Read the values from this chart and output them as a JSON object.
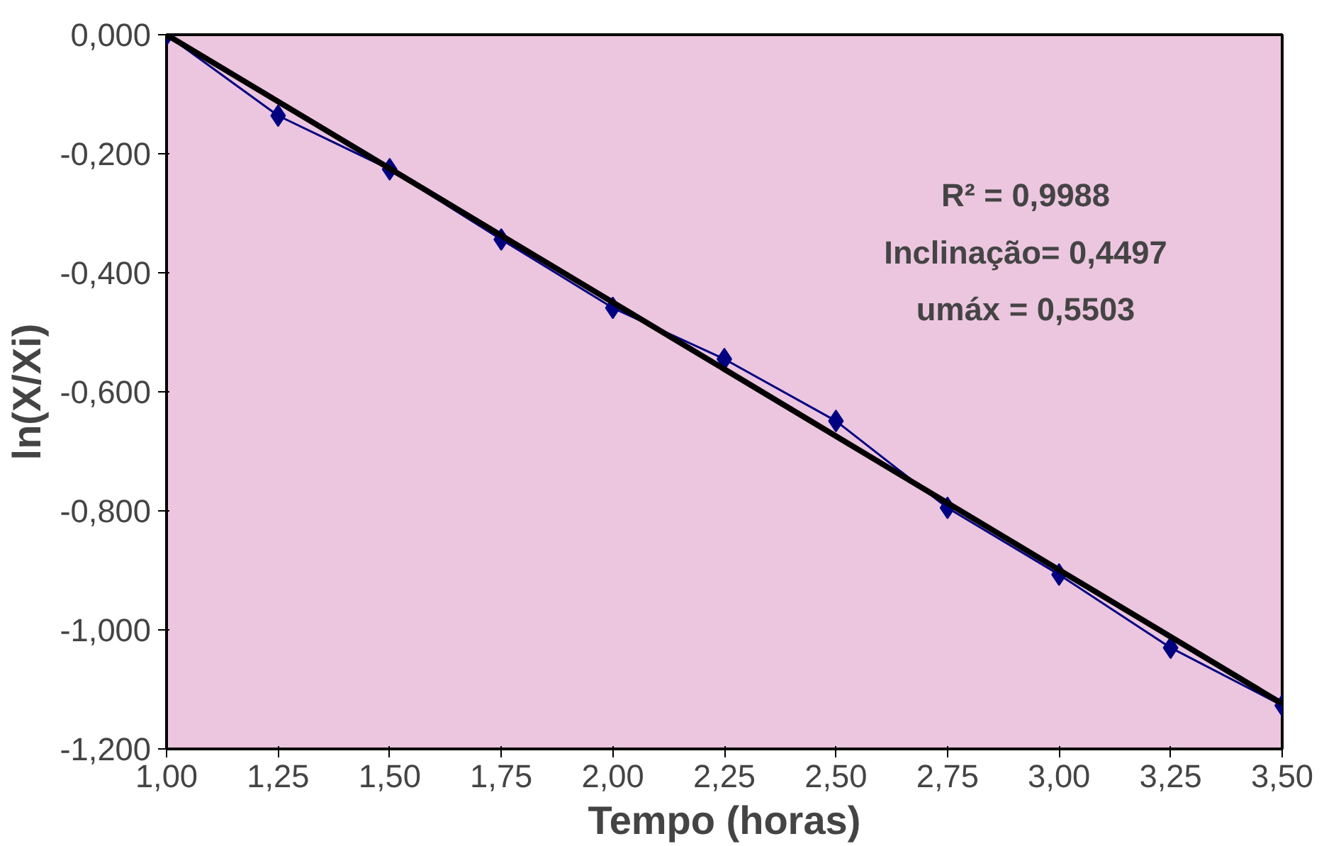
{
  "chart_data": {
    "type": "line",
    "xlabel": "Tempo (horas)",
    "ylabel": "ln(X/Xi)",
    "x": [
      1.0,
      1.25,
      1.5,
      1.75,
      2.0,
      2.25,
      2.5,
      2.75,
      3.0,
      3.25,
      3.5
    ],
    "series": [
      {
        "color": "#000080",
        "marker": "diamond",
        "values": [
          0.0,
          -0.136,
          -0.226,
          -0.344,
          -0.459,
          -0.545,
          -0.649,
          -0.795,
          -0.907,
          -1.03,
          -1.127
        ]
      },
      {
        "color": "#000000",
        "marker": "none",
        "x": [
          1.0,
          3.5
        ],
        "values": [
          0.0,
          -1.124
        ]
      }
    ],
    "xlim": [
      1.0,
      3.5
    ],
    "ylim": [
      -1.2,
      0.0
    ],
    "xticks": [
      {
        "value": 1.0,
        "label": "1,00"
      },
      {
        "value": 1.25,
        "label": "1,25"
      },
      {
        "value": 1.5,
        "label": "1,50"
      },
      {
        "value": 1.75,
        "label": "1,75"
      },
      {
        "value": 2.0,
        "label": "2,00"
      },
      {
        "value": 2.25,
        "label": "2,25"
      },
      {
        "value": 2.5,
        "label": "2,50"
      },
      {
        "value": 2.75,
        "label": "2,75"
      },
      {
        "value": 3.0,
        "label": "3,00"
      },
      {
        "value": 3.25,
        "label": "3,25"
      },
      {
        "value": 3.5,
        "label": "3,50"
      }
    ],
    "yticks": [
      {
        "value": 0.0,
        "label": "0,000"
      },
      {
        "value": -0.2,
        "label": "-0,200"
      },
      {
        "value": -0.4,
        "label": "-0,400"
      },
      {
        "value": -0.6,
        "label": "-0,600"
      },
      {
        "value": -0.8,
        "label": "-0,800"
      },
      {
        "value": -1.0,
        "label": "-1,000"
      },
      {
        "value": -1.2,
        "label": "-1,200"
      }
    ],
    "grid": false,
    "annotations": [
      "R² = 0,9988",
      "Inclinação= 0,4497",
      "umáx = 0,5503"
    ]
  }
}
